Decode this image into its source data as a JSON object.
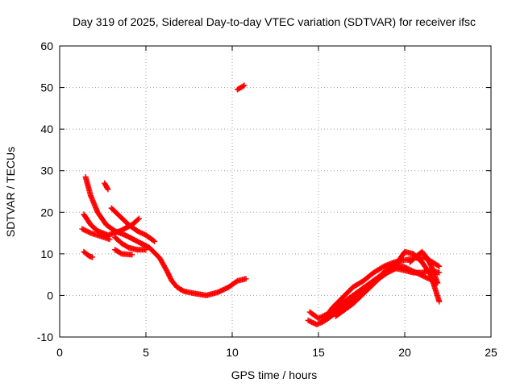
{
  "chart_data": {
    "type": "scatter",
    "title": "Day 319 of 2025, Sidereal Day-to-day VTEC variation (SDTVAR) for receiver ifsc",
    "xlabel": "GPS time / hours",
    "ylabel": "SDTVAR / TECUs",
    "xlim": [
      0,
      25
    ],
    "ylim": [
      -10,
      60
    ],
    "xticks": [
      "0",
      "5",
      "10",
      "15",
      "20",
      "25"
    ],
    "yticks": [
      "-10",
      "0",
      "10",
      "20",
      "30",
      "40",
      "50",
      "60"
    ],
    "grid": true,
    "marker": "plus",
    "series": [
      {
        "color": "#ff0000",
        "tracks": [
          [
            [
              1.5,
              28.5
            ],
            [
              1.8,
              24
            ],
            [
              2.2,
              20
            ],
            [
              2.7,
              17
            ],
            [
              3.2,
              15.5
            ],
            [
              3.8,
              14.5
            ],
            [
              4.5,
              13
            ],
            [
              5.2,
              11.5
            ],
            [
              5.8,
              9
            ],
            [
              6.2,
              6
            ],
            [
              6.5,
              3.5
            ],
            [
              6.8,
              2
            ],
            [
              7.2,
              1
            ],
            [
              7.8,
              0.5
            ],
            [
              8.5,
              0
            ],
            [
              9.2,
              0.8
            ],
            [
              9.8,
              2
            ],
            [
              10.3,
              3.5
            ],
            [
              10.8,
              4
            ]
          ],
          [
            [
              1.4,
              19.5
            ],
            [
              1.8,
              17
            ],
            [
              2.2,
              15.5
            ],
            [
              2.8,
              14.5
            ],
            [
              3.5,
              15.5
            ],
            [
              4.2,
              17
            ],
            [
              4.6,
              18.5
            ]
          ],
          [
            [
              1.3,
              16
            ],
            [
              1.8,
              15
            ],
            [
              2.4,
              14.2
            ],
            [
              2.9,
              13.5
            ]
          ],
          [
            [
              3.0,
              21
            ],
            [
              3.5,
              19
            ],
            [
              4.0,
              17
            ],
            [
              4.5,
              15.5
            ],
            [
              5.0,
              14.5
            ],
            [
              5.5,
              13
            ]
          ],
          [
            [
              3.2,
              14
            ],
            [
              3.6,
              12.5
            ],
            [
              4.0,
              11.5
            ],
            [
              4.5,
              11
            ],
            [
              5.0,
              11
            ]
          ],
          [
            [
              3.2,
              11
            ],
            [
              3.6,
              10
            ],
            [
              4.2,
              9.8
            ]
          ],
          [
            [
              1.4,
              10.5
            ],
            [
              1.7,
              9.5
            ],
            [
              1.9,
              9.2
            ]
          ],
          [
            [
              2.6,
              27
            ],
            [
              2.8,
              25.5
            ]
          ],
          [
            [
              10.3,
              49.5
            ],
            [
              10.7,
              50.5
            ]
          ],
          [
            [
              14.5,
              -4
            ],
            [
              15.0,
              -5.5
            ],
            [
              15.5,
              -4.5
            ],
            [
              16.0,
              -3
            ],
            [
              16.5,
              -1.5
            ],
            [
              17.0,
              0
            ],
            [
              17.5,
              1.5
            ],
            [
              18.0,
              3
            ],
            [
              18.5,
              4.5
            ],
            [
              19.0,
              6
            ],
            [
              19.5,
              7.5
            ],
            [
              20.0,
              10.5
            ],
            [
              20.5,
              10
            ],
            [
              21.0,
              8
            ],
            [
              21.5,
              5
            ],
            [
              22.0,
              -1.5
            ]
          ],
          [
            [
              14.4,
              -6
            ],
            [
              14.9,
              -7
            ],
            [
              15.4,
              -6
            ],
            [
              15.9,
              -4.5
            ],
            [
              16.4,
              -3
            ],
            [
              16.9,
              -1.5
            ],
            [
              17.4,
              0.5
            ],
            [
              17.9,
              2
            ],
            [
              18.4,
              4
            ],
            [
              18.9,
              6
            ],
            [
              19.4,
              7
            ],
            [
              19.9,
              7
            ],
            [
              20.4,
              6
            ],
            [
              20.9,
              5
            ],
            [
              21.4,
              4
            ],
            [
              21.9,
              3
            ]
          ],
          [
            [
              15.2,
              -6.5
            ],
            [
              15.8,
              -3
            ],
            [
              16.4,
              -0.5
            ],
            [
              17.0,
              2
            ],
            [
              17.6,
              3.5
            ],
            [
              18.2,
              5.5
            ],
            [
              18.8,
              7
            ],
            [
              19.4,
              8
            ],
            [
              20.0,
              8.5
            ],
            [
              20.6,
              9
            ],
            [
              21.2,
              9
            ],
            [
              21.8,
              7.5
            ],
            [
              22.0,
              7
            ]
          ],
          [
            [
              16.0,
              -5
            ],
            [
              16.5,
              -3.5
            ],
            [
              17.0,
              -2
            ],
            [
              17.5,
              0
            ],
            [
              18.0,
              2
            ],
            [
              18.5,
              4
            ],
            [
              19.0,
              5.5
            ],
            [
              19.5,
              6.5
            ],
            [
              20.0,
              6
            ],
            [
              20.5,
              5.5
            ],
            [
              21.0,
              5.5
            ],
            [
              21.5,
              6
            ],
            [
              22.0,
              5.5
            ]
          ],
          [
            [
              20.3,
              8
            ],
            [
              20.7,
              9.5
            ],
            [
              21.0,
              10.5
            ],
            [
              21.3,
              9
            ],
            [
              21.6,
              6.5
            ],
            [
              21.9,
              3
            ]
          ]
        ]
      }
    ]
  }
}
